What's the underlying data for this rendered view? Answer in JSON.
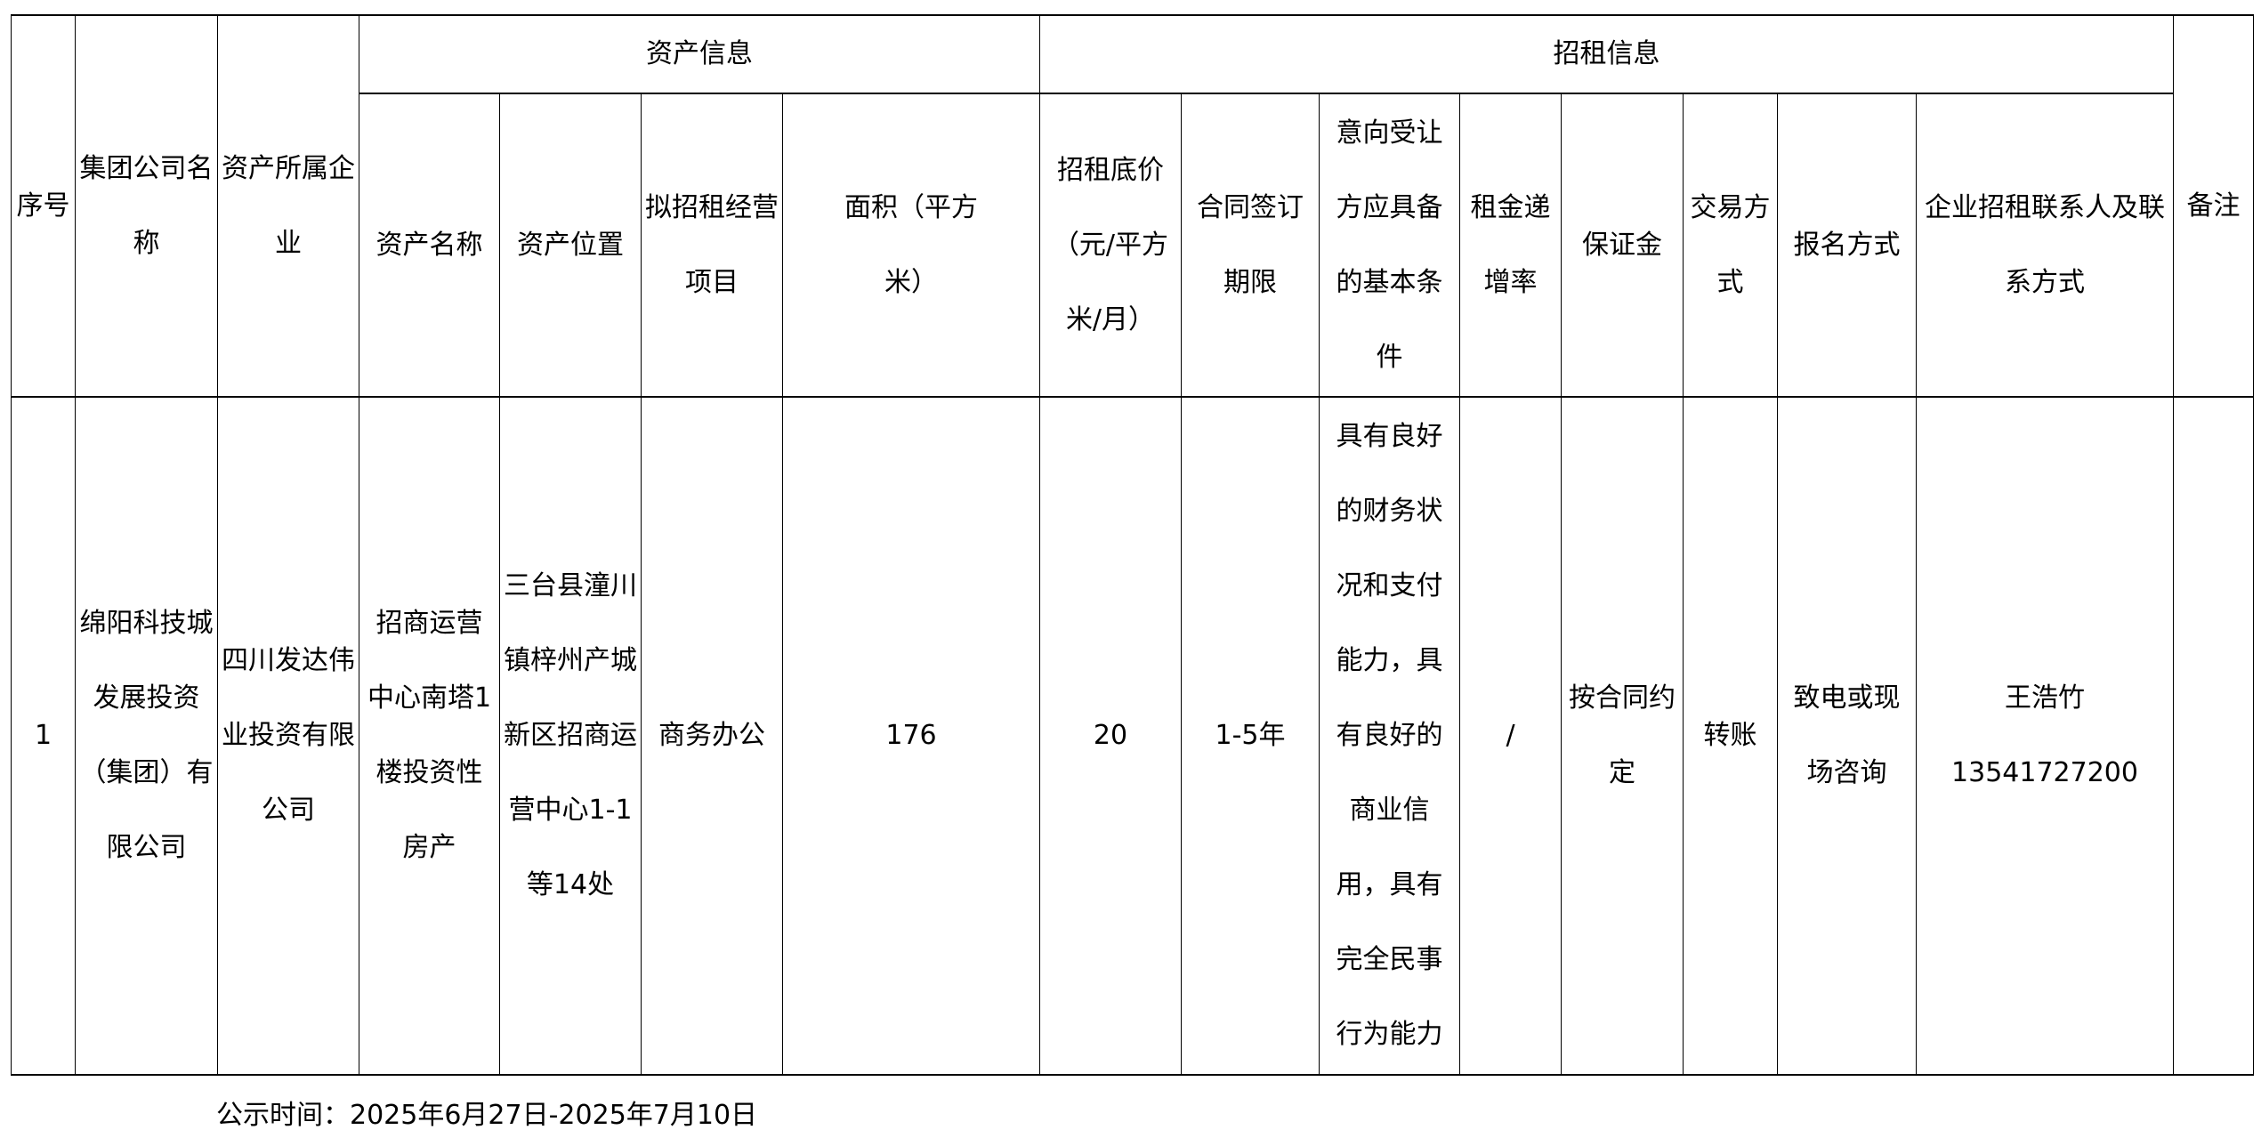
{
  "table": {
    "group_headers": {
      "asset_info": "资产信息",
      "lease_info": "招租信息"
    },
    "columns": [
      "序号",
      "集团公司名称",
      "资产所属企业",
      "资产名称",
      "资产位置",
      "拟招租经营项目",
      "面积（平方米）",
      "招租底价（元/平方米/月）",
      "合同签订期限",
      "意向受让方应具备的基本条件",
      "租金递增率",
      "保证金",
      "交易方式",
      "报名方式",
      "企业招租联系人及联系方式",
      "备注"
    ],
    "rows": [
      {
        "no": "1",
        "group_company": "绵阳科技城发展投资（集团）有限公司",
        "owner": "四川发达伟业投资有限公司",
        "asset_name": "招商运营中心南塔1楼投资性房产",
        "location": "三台县潼川镇梓州产城新区招商运营中心1-1等14处",
        "project": "商务办公",
        "area": "176",
        "price": "20",
        "term": "1-5年",
        "conditions": "具有良好的财务状况和支付能力，具有良好的商业信用，具有完全民事行为能力",
        "increase_rate": "/",
        "deposit": "按合同约定",
        "trade_method": "转账",
        "signup": "致电或现场咨询",
        "contact_name": "王浩竹",
        "contact_phone": "13541727200",
        "remark": ""
      }
    ]
  },
  "footer": {
    "notice_period": "公示时间：2025年6月27日-2025年7月10日"
  }
}
